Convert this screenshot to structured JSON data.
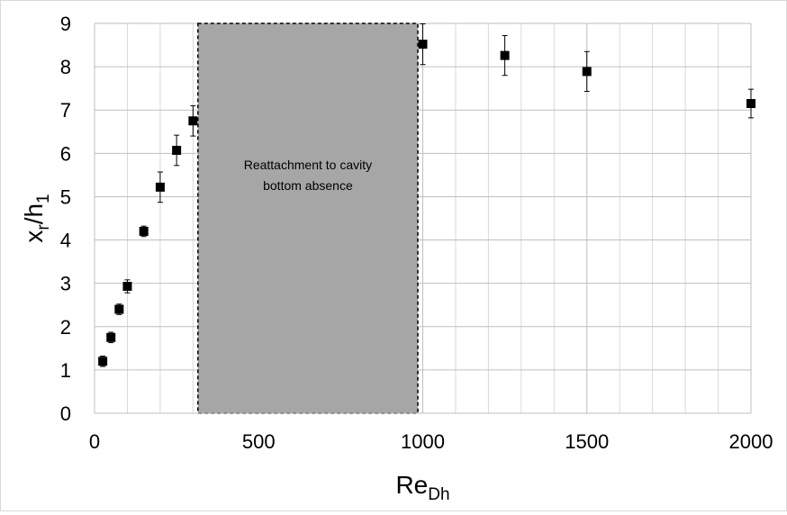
{
  "chart_data": {
    "type": "scatter",
    "xlabel": {
      "main": "Re",
      "sub": "Dh"
    },
    "ylabel": {
      "main": "x",
      "sub1": "r",
      "mid": "/h",
      "sub2": "1"
    },
    "xlim": [
      0,
      2000
    ],
    "ylim": [
      0,
      9
    ],
    "xticks": [
      0,
      500,
      1000,
      1500,
      2000
    ],
    "yticks": [
      0,
      1,
      2,
      3,
      4,
      5,
      6,
      7,
      8,
      9
    ],
    "xtick_labels": [
      "0",
      "500",
      "1000",
      "1500",
      "2000"
    ],
    "ytick_labels": [
      "0",
      "1",
      "2",
      "3",
      "4",
      "5",
      "6",
      "7",
      "8",
      "9"
    ],
    "grid": true,
    "x_minor_gridlines_per_major": 5,
    "marker": "square",
    "marker_color": "#000000",
    "points": [
      {
        "x": 25,
        "y": 1.2,
        "err": 0.12
      },
      {
        "x": 50,
        "y": 1.75,
        "err": 0.12
      },
      {
        "x": 75,
        "y": 2.4,
        "err": 0.12
      },
      {
        "x": 100,
        "y": 2.93,
        "err": 0.15
      },
      {
        "x": 150,
        "y": 4.2,
        "err": 0.12
      },
      {
        "x": 200,
        "y": 5.22,
        "err": 0.35
      },
      {
        "x": 250,
        "y": 6.07,
        "err": 0.35
      },
      {
        "x": 300,
        "y": 6.75,
        "err": 0.35
      },
      {
        "x": 1000,
        "y": 8.52,
        "err": 0.47
      },
      {
        "x": 1250,
        "y": 8.26,
        "err": 0.46
      },
      {
        "x": 1500,
        "y": 7.89,
        "err": 0.46
      },
      {
        "x": 2000,
        "y": 7.15,
        "err": 0.33
      }
    ],
    "shaded_region": {
      "x_start": 315,
      "x_end": 985,
      "y_start": 0,
      "y_end": 9,
      "fill": "#a6a6a6",
      "border": "dashed",
      "label_lines": [
        "Reattachment to cavity",
        "bottom absence"
      ]
    }
  }
}
